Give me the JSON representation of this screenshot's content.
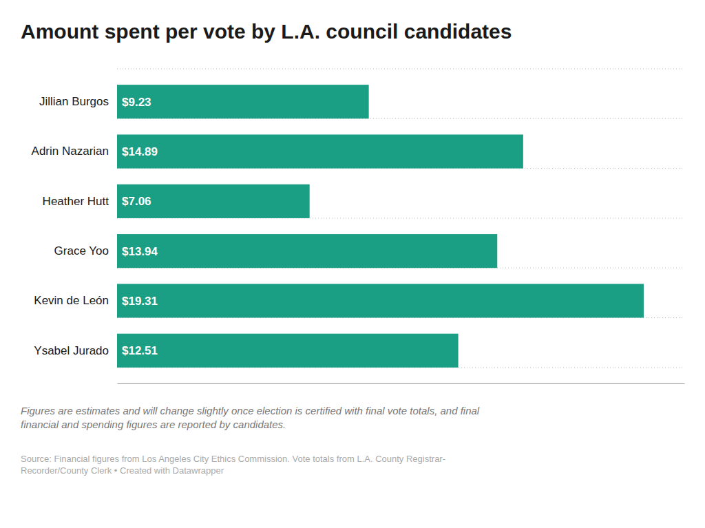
{
  "chart_data": {
    "type": "bar",
    "orientation": "horizontal",
    "title": "Amount spent per vote by L.A. council candidates",
    "categories": [
      "Jillian Burgos",
      "Adrin Nazarian",
      "Heather Hutt",
      "Grace Yoo",
      "Kevin de León",
      "Ysabel Jurado"
    ],
    "values": [
      9.23,
      14.89,
      7.06,
      13.94,
      19.31,
      12.51
    ],
    "value_labels": [
      "$9.23",
      "$14.89",
      "$7.06",
      "$13.94",
      "$19.31",
      "$12.51"
    ],
    "data_labels": true,
    "color": "#1a9e84",
    "xlim": [
      0,
      20.8
    ],
    "tick_labels": false,
    "annotations": [
      "Figures are estimates and will change slightly once election is certified with final vote totals, and final\nfinancial and spending figures are reported by candidates.",
      "Source: Financial figures from Los Angeles City Ethics Commission. Vote totals from L.A. County Registrar-\nRecorder/County Clerk • Created with Datawrapper"
    ]
  }
}
